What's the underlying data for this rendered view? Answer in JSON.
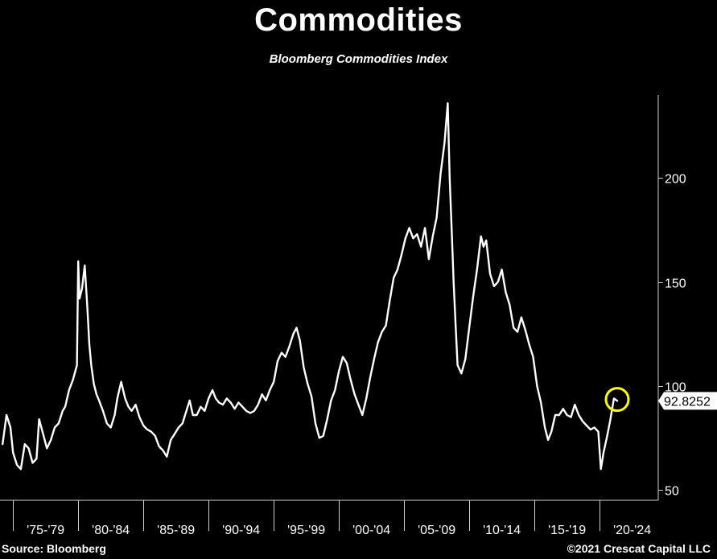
{
  "title": "Commodities",
  "subtitle": "Bloomberg Commodities Index",
  "source": "Source: Bloomberg",
  "copyright": "©2021 Crescat Capital LLC",
  "chart_data": {
    "type": "line",
    "series": [
      {
        "x": [
          1974.2,
          1974.5,
          1974.8,
          1975.0,
          1975.3,
          1975.6,
          1975.9,
          1976.2,
          1976.5,
          1976.8,
          1977.0,
          1977.3,
          1977.6,
          1977.9,
          1978.2,
          1978.5,
          1978.8,
          1979.0,
          1979.3,
          1979.6,
          1979.9,
          1980.0,
          1980.1,
          1980.3,
          1980.5,
          1980.7,
          1980.85,
          1981.0,
          1981.2,
          1981.4,
          1981.6,
          1981.9,
          1982.2,
          1982.5,
          1982.8,
          1983.0,
          1983.3,
          1983.6,
          1983.85,
          1984.1,
          1984.4,
          1984.7,
          1985.0,
          1985.3,
          1985.6,
          1985.9,
          1986.2,
          1986.5,
          1986.8,
          1987.1,
          1987.4,
          1987.7,
          1988.0,
          1988.3,
          1988.55,
          1988.8,
          1989.1,
          1989.4,
          1989.7,
          1990.0,
          1990.3,
          1990.55,
          1990.8,
          1991.1,
          1991.4,
          1991.7,
          1992.0,
          1992.3,
          1992.6,
          1992.9,
          1993.2,
          1993.5,
          1993.8,
          1994.1,
          1994.4,
          1994.7,
          1995.0,
          1995.3,
          1995.6,
          1995.9,
          1996.2,
          1996.5,
          1996.75,
          1997.0,
          1997.3,
          1997.6,
          1997.9,
          1998.2,
          1998.5,
          1998.8,
          1999.1,
          1999.4,
          1999.7,
          2000.0,
          2000.3,
          2000.6,
          2000.9,
          2001.2,
          2001.5,
          2001.8,
          2002.1,
          2002.4,
          2002.7,
          2003.0,
          2003.3,
          2003.6,
          2003.9,
          2004.2,
          2004.5,
          2004.8,
          2005.1,
          2005.4,
          2005.7,
          2006.0,
          2006.3,
          2006.6,
          2006.9,
          2007.2,
          2007.5,
          2007.8,
          2008.1,
          2008.35,
          2008.5,
          2008.65,
          2008.8,
          2008.95,
          2009.1,
          2009.4,
          2009.7,
          2010.0,
          2010.3,
          2010.6,
          2010.9,
          2011.1,
          2011.3,
          2011.6,
          2011.9,
          2012.2,
          2012.5,
          2012.8,
          2013.1,
          2013.4,
          2013.7,
          2014.0,
          2014.3,
          2014.6,
          2014.9,
          2015.2,
          2015.5,
          2015.8,
          2016.05,
          2016.3,
          2016.6,
          2016.9,
          2017.2,
          2017.5,
          2017.8,
          2018.1,
          2018.4,
          2018.7,
          2019.0,
          2019.3,
          2019.6,
          2019.9,
          2020.1,
          2020.3,
          2020.55,
          2020.8,
          2021.1,
          2021.35
        ],
        "y": [
          72,
          86,
          80,
          68,
          62,
          60,
          72,
          70,
          63,
          65,
          84,
          77,
          70,
          74,
          80,
          82,
          88,
          90,
          98,
          103,
          110,
          160,
          142,
          147,
          158,
          138,
          120,
          110,
          101,
          96,
          93,
          88,
          82,
          80,
          86,
          94,
          102,
          94,
          90,
          88,
          91,
          85,
          81,
          79,
          78,
          76,
          71,
          69,
          66,
          74,
          77,
          80,
          82,
          88,
          93,
          86,
          86,
          90,
          88,
          94,
          98,
          94,
          92,
          91,
          94,
          92,
          89,
          92,
          90,
          88,
          87,
          88,
          91,
          96,
          93,
          98,
          102,
          112,
          116,
          114,
          119,
          125,
          128,
          122,
          109,
          101,
          95,
          82,
          75,
          76,
          84,
          93,
          98,
          107,
          114,
          111,
          103,
          96,
          91,
          86,
          94,
          104,
          113,
          121,
          126,
          129,
          141,
          152,
          156,
          163,
          171,
          176,
          171,
          173,
          167,
          176,
          161,
          172,
          181,
          202,
          217,
          236,
          200,
          175,
          150,
          130,
          110,
          106,
          113,
          128,
          143,
          156,
          172,
          167,
          170,
          154,
          148,
          150,
          156,
          145,
          139,
          128,
          126,
          133,
          127,
          120,
          114,
          100,
          92,
          80,
          74,
          78,
          86,
          86,
          89,
          86,
          85,
          91,
          86,
          83,
          81,
          79,
          80,
          78,
          60,
          68,
          75,
          83,
          94,
          92.8252
        ]
      }
    ],
    "ylim": [
      45,
      240
    ],
    "xlim": [
      1974,
      2024.5
    ],
    "y_ticks": [
      50,
      100,
      150,
      200
    ],
    "y_tick_labels": [
      "50",
      "100",
      "150",
      "200"
    ],
    "x_tick_labels": [
      "'75-'79",
      "'80-'84",
      "'85-'89",
      "'90-'94",
      "'95-'99",
      "'00-'04",
      "'05-'09",
      "'10-'14",
      "'15-'19",
      "'20-'24"
    ],
    "x_period_starts": [
      1975,
      1980,
      1985,
      1990,
      1995,
      2000,
      2005,
      2010,
      2015,
      2020,
      2025
    ],
    "last_value_label": "92.8252",
    "last_value": 92.8252,
    "highlight_marker": {
      "x": 2021.35,
      "y": 93.5,
      "color": "#ffff00"
    },
    "line_color": "#ffffff",
    "background": "#000000",
    "grid": false
  }
}
